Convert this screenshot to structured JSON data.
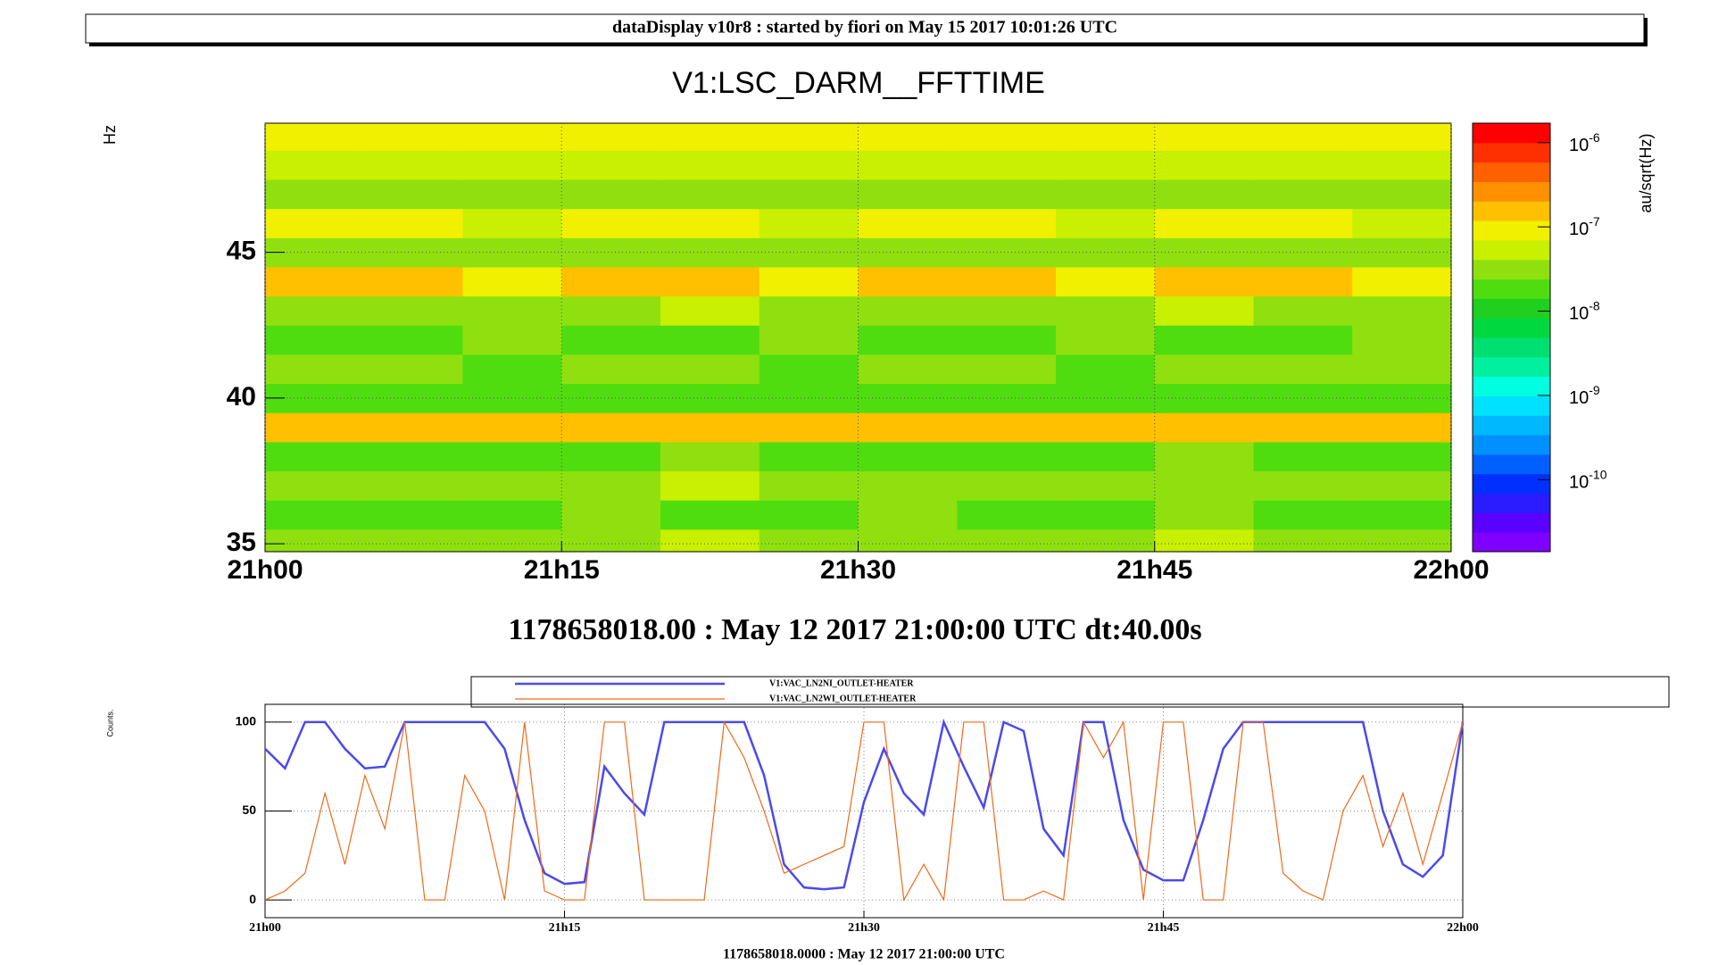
{
  "header": {
    "title": "dataDisplay v10r8 : started by fiori on May 15 2017 10:01:26 UTC"
  },
  "chart_data": [
    {
      "type": "heatmap",
      "title": "V1:LSC_DARM__FFTTIME",
      "xlabel": "1178658018.00 : May 12 2017 21:00:00 UTC dt:40.00s",
      "ylabel": "Hz",
      "zlabel": "au/sqrt(Hz)",
      "x": [
        0,
        5,
        10,
        15,
        20,
        25,
        30,
        35,
        40,
        45,
        50,
        55
      ],
      "y": [
        35,
        36,
        37,
        38,
        39,
        40,
        41,
        42,
        43,
        44,
        45,
        46,
        47,
        48,
        49
      ],
      "z": [
        [
          3e-08,
          3e-08,
          4e-08,
          3e-08,
          5e-08,
          4e-08,
          3e-08,
          4e-08,
          3e-08,
          5e-08,
          4e-08,
          3e-08
        ],
        [
          2e-08,
          2e-08,
          2e-08,
          3e-08,
          2e-08,
          2e-08,
          3e-08,
          2e-08,
          2e-08,
          3e-08,
          2e-08,
          2e-08
        ],
        [
          4e-08,
          3e-08,
          4e-08,
          4e-08,
          5e-08,
          3e-08,
          4e-08,
          4e-08,
          3e-08,
          4e-08,
          4e-08,
          3e-08
        ],
        [
          2e-08,
          2e-08,
          2e-08,
          2e-08,
          3e-08,
          2e-08,
          2e-08,
          2e-08,
          2e-08,
          3e-08,
          2e-08,
          2e-08
        ],
        [
          2e-07,
          2e-07,
          2e-07,
          1.5e-07,
          2e-07,
          2e-07,
          2e-07,
          1.5e-07,
          2e-07,
          2e-07,
          2e-07,
          2e-07
        ],
        [
          2e-08,
          1.5e-08,
          1.5e-08,
          2e-08,
          1.5e-08,
          1.5e-08,
          1.5e-08,
          2e-08,
          1.5e-08,
          2e-08,
          1.5e-08,
          2e-08
        ],
        [
          3e-08,
          3e-08,
          2e-08,
          3e-08,
          3e-08,
          2e-08,
          3e-08,
          3e-08,
          2e-08,
          3e-08,
          3e-08,
          3e-08
        ],
        [
          2e-08,
          2e-08,
          3e-08,
          2e-08,
          2e-08,
          3e-08,
          2e-08,
          2e-08,
          3e-08,
          2e-08,
          2e-08,
          3e-08
        ],
        [
          4e-08,
          4e-08,
          3e-08,
          4e-08,
          5e-08,
          4e-08,
          4e-08,
          3e-08,
          4e-08,
          5e-08,
          4e-08,
          4e-08
        ],
        [
          1.5e-07,
          1.5e-07,
          1e-07,
          1.5e-07,
          1.5e-07,
          1e-07,
          1.5e-07,
          1.5e-07,
          1e-07,
          1.5e-07,
          1.5e-07,
          1e-07
        ],
        [
          3e-08,
          4e-08,
          3e-08,
          3e-08,
          4e-08,
          3e-08,
          3e-08,
          4e-08,
          3e-08,
          3e-08,
          4e-08,
          3e-08
        ],
        [
          8e-08,
          8e-08,
          6e-08,
          8e-08,
          8e-08,
          6e-08,
          8e-08,
          8e-08,
          6e-08,
          8e-08,
          8e-08,
          6e-08
        ],
        [
          4e-08,
          3e-08,
          4e-08,
          4e-08,
          3e-08,
          4e-08,
          4e-08,
          3e-08,
          4e-08,
          4e-08,
          3e-08,
          4e-08
        ],
        [
          6e-08,
          6e-08,
          5e-08,
          6e-08,
          6e-08,
          5e-08,
          6e-08,
          6e-08,
          5e-08,
          6e-08,
          6e-08,
          5e-08
        ],
        [
          1e-07,
          1e-07,
          8e-08,
          1e-07,
          1e-07,
          8e-08,
          1e-07,
          1e-07,
          8e-08,
          1e-07,
          1e-07,
          8e-08
        ]
      ],
      "xlim": [
        0,
        60
      ],
      "xticks": [
        {
          "value": 0,
          "label": "21h00"
        },
        {
          "value": 15,
          "label": "21h15"
        },
        {
          "value": 30,
          "label": "21h30"
        },
        {
          "value": 45,
          "label": "21h45"
        },
        {
          "value": 60,
          "label": "22h00"
        }
      ],
      "ylim": [
        34.73,
        49.43
      ],
      "yticks": [
        35,
        40,
        45
      ],
      "zlim": [
        1.4e-11,
        1.7e-06
      ],
      "logz": true,
      "zticks": [
        {
          "value": 1e-06,
          "label": "10-6"
        },
        {
          "value": 1e-07,
          "label": "10-7"
        },
        {
          "value": 1e-08,
          "label": "10-8"
        },
        {
          "value": 1e-09,
          "label": "10-9"
        },
        {
          "value": 1e-10,
          "label": "10-10"
        }
      ],
      "palette": [
        "#8000ff",
        "#5a00ff",
        "#2b1bff",
        "#0030ff",
        "#0060ff",
        "#0090ff",
        "#00b8ff",
        "#00e0ff",
        "#00ffe0",
        "#00f0a0",
        "#00e070",
        "#00d840",
        "#20d020",
        "#50dd10",
        "#90e010",
        "#c8f000",
        "#f0f000",
        "#ffc000",
        "#ff9000",
        "#ff6000",
        "#ff3000",
        "#ff0000"
      ],
      "grid": true
    },
    {
      "type": "line",
      "ylabel": "Counts.",
      "xlabel": "1178658018.0000 : May 12 2017 21:00:00 UTC",
      "x": [
        0,
        1,
        2,
        3,
        4,
        5,
        6,
        7,
        8,
        9,
        10,
        11,
        12,
        13,
        14,
        15,
        16,
        17,
        18,
        19,
        20,
        21,
        22,
        23,
        24,
        25,
        26,
        27,
        28,
        29,
        30,
        31,
        32,
        33,
        34,
        35,
        36,
        37,
        38,
        39,
        40,
        41,
        42,
        43,
        44,
        45,
        46,
        47,
        48,
        49,
        50,
        51,
        52,
        53,
        54,
        55,
        56,
        57,
        58,
        59,
        60
      ],
      "series": [
        {
          "name": "V1:VAC_LN2NI_OUTLET-HEATER",
          "color": "#4a4aee",
          "width": 2.5,
          "values": [
            85,
            74,
            100,
            100,
            85,
            74,
            75,
            100,
            100,
            100,
            100,
            100,
            85,
            45,
            15,
            9,
            10,
            75,
            60,
            48,
            100,
            100,
            100,
            100,
            100,
            70,
            20,
            7,
            6,
            7,
            55,
            85,
            60,
            48,
            100,
            75,
            52,
            100,
            95,
            40,
            25,
            100,
            100,
            45,
            17,
            11,
            11,
            45,
            85,
            100,
            100,
            100,
            100,
            100,
            100,
            100,
            50,
            20,
            13,
            25,
            100
          ]
        },
        {
          "name": "V1:VAC_LN2WI_OUTLET-HEATER",
          "color": "#ee6a1a",
          "width": 1.2,
          "values": [
            0,
            5,
            15,
            60,
            20,
            70,
            40,
            100,
            0,
            0,
            70,
            50,
            0,
            100,
            5,
            0,
            0,
            100,
            100,
            0,
            0,
            0,
            0,
            100,
            80,
            50,
            15,
            20,
            25,
            30,
            100,
            100,
            0,
            20,
            0,
            100,
            100,
            0,
            0,
            5,
            0,
            100,
            80,
            100,
            0,
            100,
            100,
            0,
            0,
            100,
            100,
            15,
            5,
            0,
            50,
            70,
            30,
            60,
            20,
            60,
            100
          ]
        }
      ],
      "xlim": [
        0,
        60
      ],
      "xticks": [
        {
          "value": 0,
          "label": "21h00"
        },
        {
          "value": 15,
          "label": "21h15"
        },
        {
          "value": 30,
          "label": "21h30"
        },
        {
          "value": 45,
          "label": "21h45"
        },
        {
          "value": 60,
          "label": "22h00"
        }
      ],
      "ylim": [
        -10,
        110
      ],
      "yticks": [
        0,
        50,
        100
      ],
      "grid": true,
      "legend": "top"
    }
  ]
}
